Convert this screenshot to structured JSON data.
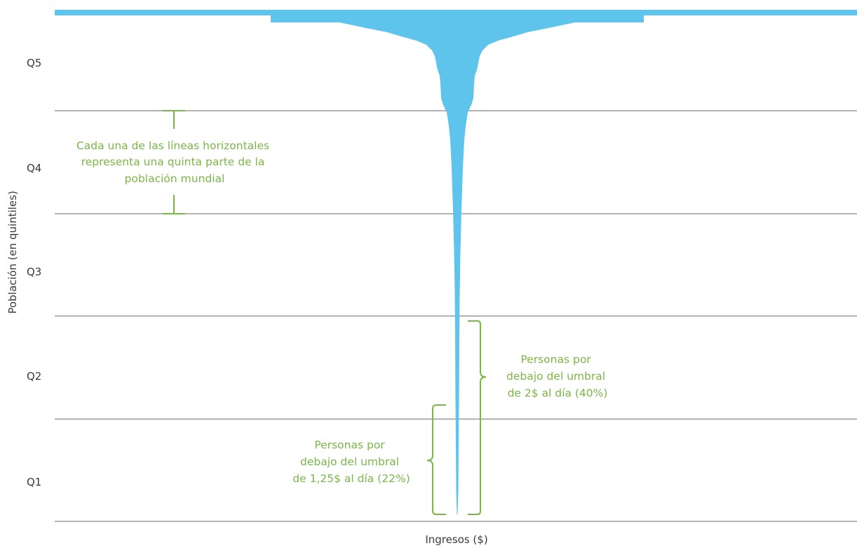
{
  "chart_data": {
    "type": "area",
    "xlabel": "Ingresos ($)",
    "ylabel": "Población (en quintiles)",
    "quintiles": [
      "Q1",
      "Q2",
      "Q3",
      "Q4",
      "Q5"
    ],
    "ylim": [
      0,
      100
    ],
    "grid": true,
    "colors": {
      "fill": "#5ec4ec",
      "annotation": "#7ab648",
      "grid": "#9a9a9a"
    },
    "annotations": {
      "quintile_note": [
        "Cada una de las líneas horizontales",
        "representa una quinta parte de la",
        "población mundial"
      ],
      "two_dollar": [
        "Personas por",
        "debajo del umbral",
        "de 2$ al día (40%)"
      ],
      "one25_dollar": [
        "Personas por",
        "debajo del umbral",
        "de 1,25$ al día (22%)"
      ]
    },
    "thresholds_percent": {
      "two_dollar": 40,
      "one25_dollar": 22
    }
  }
}
